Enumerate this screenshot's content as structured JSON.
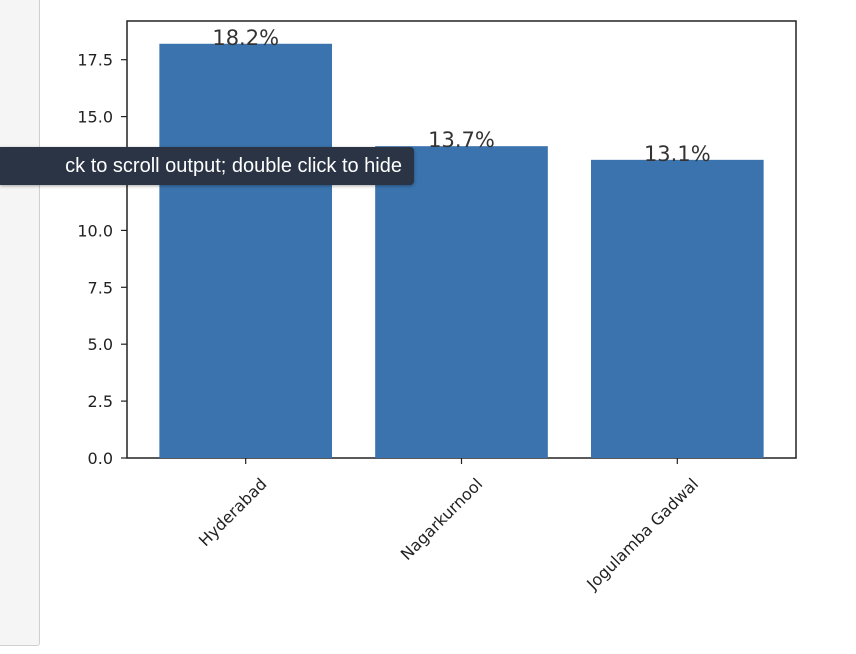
{
  "tooltip": {
    "text": "ck to scroll output; double click to hide"
  },
  "chart_data": {
    "type": "bar",
    "categories": [
      "Hyderabad",
      "Nagarkurnool",
      "Jogulamba Gadwal"
    ],
    "values": [
      18.2,
      13.7,
      13.1
    ],
    "data_labels": [
      "18.2%",
      "13.7%",
      "13.1%"
    ],
    "yticks": [
      "0.0",
      "2.5",
      "5.0",
      "7.5",
      "10.0",
      "12.5",
      "15.0",
      "17.5"
    ],
    "ylim": [
      0,
      19.2
    ],
    "title": "",
    "xlabel": "",
    "ylabel": "",
    "grid": false,
    "bar_color": "#3a73ad"
  }
}
